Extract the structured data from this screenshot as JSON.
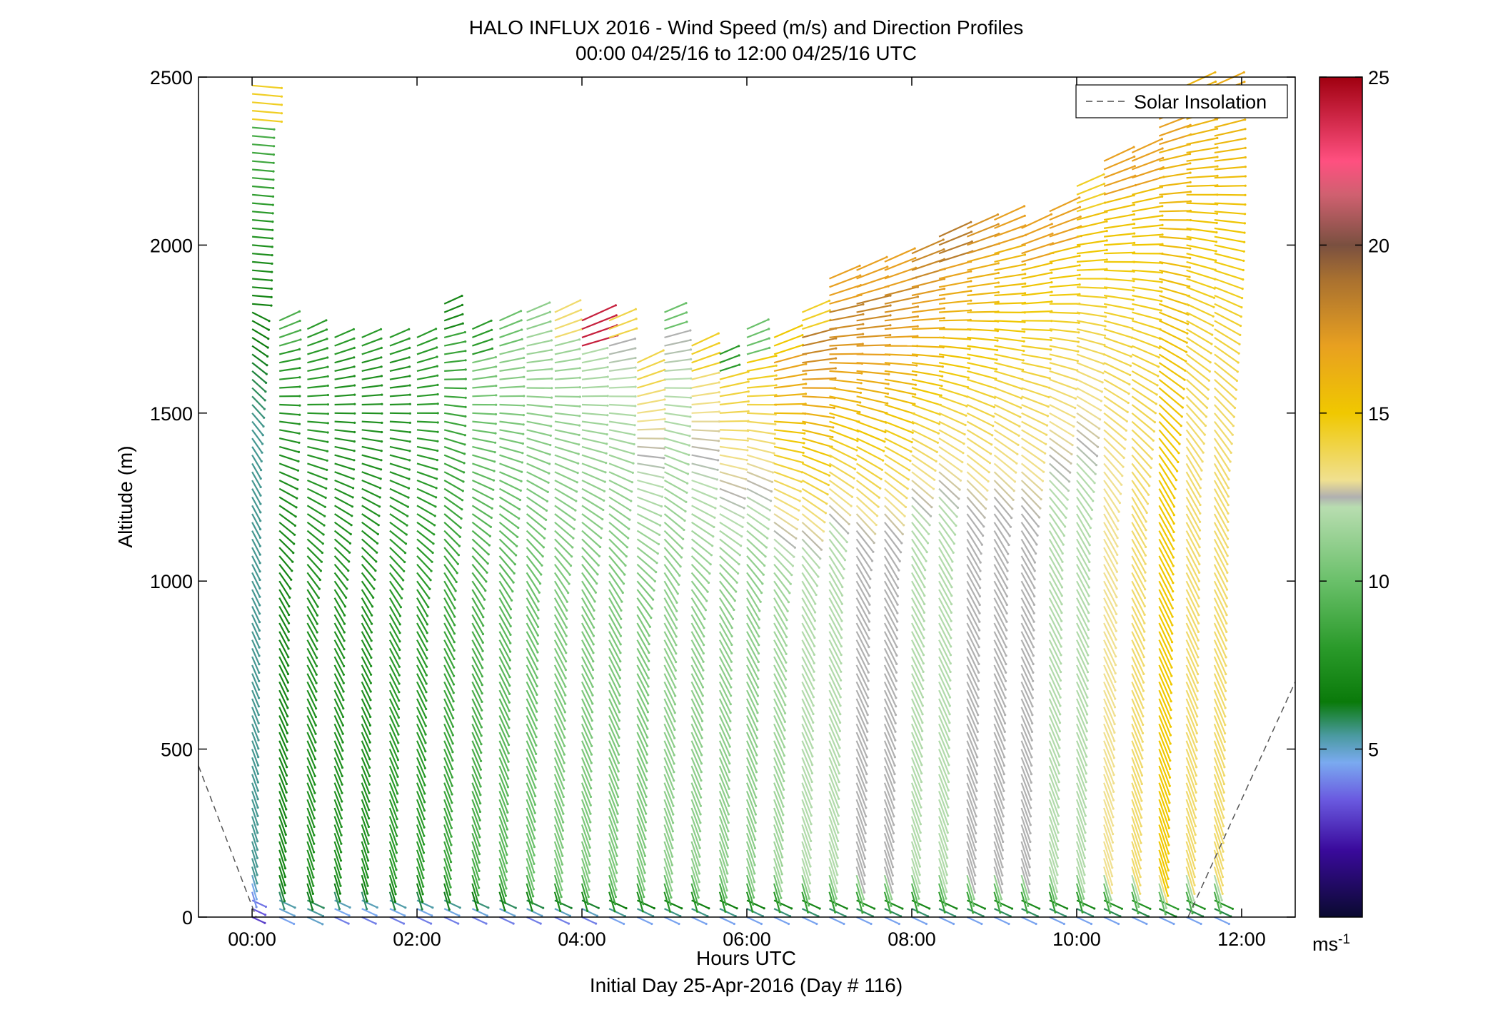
{
  "chart_data": {
    "type": "wind-barb-profile",
    "title": "HALO INFLUX 2016 - Wind Speed (m/s) and Direction Profiles",
    "subtitle": "00:00 04/25/16 to 12:00 04/25/16  UTC",
    "xlabel": "Hours UTC",
    "xlabel2": "Initial Day 25-Apr-2016 (Day # 116)",
    "ylabel": "Altitude (m)",
    "x_ticks": [
      "00:00",
      "02:00",
      "04:00",
      "06:00",
      "08:00",
      "10:00",
      "12:00"
    ],
    "x_tick_hours": [
      0,
      2,
      4,
      6,
      8,
      10,
      12
    ],
    "xlim_hours": [
      -0.65,
      12.65
    ],
    "y_ticks": [
      "0",
      "500",
      "1000",
      "1500",
      "2000",
      "2500"
    ],
    "y_tick_values": [
      0,
      500,
      1000,
      1500,
      2000,
      2500
    ],
    "ylim": [
      0,
      2500
    ],
    "legend": {
      "label": "Solar Insolation",
      "placement": "top-right"
    },
    "colorbar": {
      "ticks": [
        "5",
        "10",
        "15",
        "20",
        "25"
      ],
      "tick_values": [
        5,
        10,
        15,
        20,
        25
      ],
      "range": [
        0,
        25
      ],
      "unit": "ms",
      "unit_exp": "-1",
      "stops": [
        {
          "v": 0,
          "c": "#0a0a30"
        },
        {
          "v": 2,
          "c": "#3a0a9c"
        },
        {
          "v": 3.5,
          "c": "#6a5ae0"
        },
        {
          "v": 4.6,
          "c": "#7aaaf0"
        },
        {
          "v": 5.4,
          "c": "#4a9aa0"
        },
        {
          "v": 6.4,
          "c": "#0a7a0a"
        },
        {
          "v": 8,
          "c": "#2a9a2a"
        },
        {
          "v": 10,
          "c": "#6ac06a"
        },
        {
          "v": 12.2,
          "c": "#b8ddb0"
        },
        {
          "v": 12.5,
          "c": "#b0b0b0"
        },
        {
          "v": 13,
          "c": "#f0e090"
        },
        {
          "v": 15,
          "c": "#f0c800"
        },
        {
          "v": 17,
          "c": "#e8a020"
        },
        {
          "v": 19,
          "c": "#a87030"
        },
        {
          "v": 20,
          "c": "#7a5040"
        },
        {
          "v": 21.5,
          "c": "#d06070"
        },
        {
          "v": 22.5,
          "c": "#ff5080"
        },
        {
          "v": 25,
          "c": "#a00010"
        }
      ]
    },
    "solar_insolation": [
      {
        "x": -0.65,
        "y": 450
      },
      {
        "x": 0.05,
        "y": 0
      },
      {
        "x": 11.35,
        "y": 0
      },
      {
        "x": 12.65,
        "y": 700
      }
    ],
    "profiles": [
      {
        "t": 0.0,
        "top": 2480,
        "dir": 265,
        "speed_low": 3.0,
        "speed_mid": 5.5,
        "speed_high": 9.0,
        "speed_top": 14.5
      },
      {
        "t": 0.33,
        "top": 1780,
        "dir": 320,
        "speed_low": 4.5,
        "speed_mid": 7.0,
        "speed_high": 8.0,
        "speed_top": 9.0
      },
      {
        "t": 0.67,
        "top": 1750,
        "dir": 330,
        "speed_low": 5.0,
        "speed_mid": 7.5,
        "speed_high": 8.0,
        "speed_top": 8.0
      },
      {
        "t": 1.0,
        "top": 1740,
        "dir": 335,
        "speed_low": 4.0,
        "speed_mid": 7.5,
        "speed_high": 7.5,
        "speed_top": 8.0
      },
      {
        "t": 1.33,
        "top": 1740,
        "dir": 335,
        "speed_low": 4.0,
        "speed_mid": 7.5,
        "speed_high": 7.5,
        "speed_top": 8.0
      },
      {
        "t": 1.67,
        "top": 1740,
        "dir": 340,
        "speed_low": 4.0,
        "speed_mid": 8.0,
        "speed_high": 7.5,
        "speed_top": 8.0
      },
      {
        "t": 2.0,
        "top": 1730,
        "dir": 340,
        "speed_low": 4.0,
        "speed_mid": 8.0,
        "speed_high": 8.0,
        "speed_top": 8.0
      },
      {
        "t": 2.33,
        "top": 1830,
        "dir": 340,
        "speed_low": 4.0,
        "speed_mid": 8.5,
        "speed_high": 8.5,
        "speed_top": 7.0
      },
      {
        "t": 2.67,
        "top": 1760,
        "dir": 340,
        "speed_low": 4.0,
        "speed_mid": 9.0,
        "speed_high": 10.5,
        "speed_top": 8.0
      },
      {
        "t": 3.0,
        "top": 1780,
        "dir": 345,
        "speed_low": 4.0,
        "speed_mid": 9.5,
        "speed_high": 11.0,
        "speed_top": 10.0
      },
      {
        "t": 3.33,
        "top": 1820,
        "dir": 345,
        "speed_low": 4.0,
        "speed_mid": 10.0,
        "speed_high": 11.5,
        "speed_top": 11.0
      },
      {
        "t": 3.67,
        "top": 1800,
        "dir": 350,
        "speed_low": 4.0,
        "speed_mid": 10.5,
        "speed_high": 11.5,
        "speed_top": 13.5
      },
      {
        "t": 4.0,
        "top": 1780,
        "dir": 350,
        "speed_low": 4.0,
        "speed_mid": 10.5,
        "speed_high": 12.0,
        "speed_top": 24.0
      },
      {
        "t": 4.33,
        "top": 1790,
        "dir": 345,
        "speed_low": 4.5,
        "speed_mid": 10.5,
        "speed_high": 12.5,
        "speed_top": 14.0
      },
      {
        "t": 4.67,
        "top": 1650,
        "dir": 350,
        "speed_low": 4.5,
        "speed_mid": 10.5,
        "speed_high": 13.5,
        "speed_top": 14.0
      },
      {
        "t": 5.0,
        "top": 1820,
        "dir": 350,
        "speed_low": 4.5,
        "speed_mid": 11.0,
        "speed_high": 12.5,
        "speed_top": 10.0
      },
      {
        "t": 5.33,
        "top": 1700,
        "dir": 350,
        "speed_low": 4.5,
        "speed_mid": 11.0,
        "speed_high": 13.5,
        "speed_top": 14.5
      },
      {
        "t": 5.67,
        "top": 1690,
        "dir": 355,
        "speed_low": 4.5,
        "speed_mid": 11.0,
        "speed_high": 14.5,
        "speed_top": 8.0
      },
      {
        "t": 6.0,
        "top": 1760,
        "dir": 355,
        "speed_low": 4.5,
        "speed_mid": 11.0,
        "speed_high": 15.0,
        "speed_top": 10.0
      },
      {
        "t": 6.33,
        "top": 1740,
        "dir": 355,
        "speed_low": 4.5,
        "speed_mid": 11.5,
        "speed_high": 17.0,
        "speed_top": 15.0
      },
      {
        "t": 6.67,
        "top": 1820,
        "dir": 355,
        "speed_low": 4.5,
        "speed_mid": 12.0,
        "speed_high": 18.5,
        "speed_top": 14.5
      },
      {
        "t": 7.0,
        "top": 1920,
        "dir": 355,
        "speed_low": 4.5,
        "speed_mid": 12.0,
        "speed_high": 18.5,
        "speed_top": 17.0
      },
      {
        "t": 7.33,
        "top": 1940,
        "dir": 355,
        "speed_low": 4.5,
        "speed_mid": 12.5,
        "speed_high": 18.5,
        "speed_top": 17.0
      },
      {
        "t": 7.67,
        "top": 1960,
        "dir": 355,
        "speed_low": 4.5,
        "speed_mid": 12.5,
        "speed_high": 18.0,
        "speed_top": 17.0
      },
      {
        "t": 8.0,
        "top": 1990,
        "dir": 0,
        "speed_low": 4.5,
        "speed_mid": 12.0,
        "speed_high": 17.5,
        "speed_top": 18.0
      },
      {
        "t": 8.33,
        "top": 2030,
        "dir": 0,
        "speed_low": 4.5,
        "speed_mid": 12.0,
        "speed_high": 17.0,
        "speed_top": 18.5
      },
      {
        "t": 8.67,
        "top": 2060,
        "dir": 0,
        "speed_low": 4.5,
        "speed_mid": 12.5,
        "speed_high": 16.5,
        "speed_top": 17.5
      },
      {
        "t": 9.0,
        "top": 2080,
        "dir": 0,
        "speed_low": 4.5,
        "speed_mid": 12.5,
        "speed_high": 16.0,
        "speed_top": 17.0
      },
      {
        "t": 9.33,
        "top": 2050,
        "dir": 0,
        "speed_low": 4.5,
        "speed_mid": 12.5,
        "speed_high": 15.5,
        "speed_top": 17.0
      },
      {
        "t": 9.67,
        "top": 2100,
        "dir": 0,
        "speed_low": 4.5,
        "speed_mid": 12.0,
        "speed_high": 15.5,
        "speed_top": 17.0
      },
      {
        "t": 10.0,
        "top": 2190,
        "dir": 0,
        "speed_low": 4.5,
        "speed_mid": 12.0,
        "speed_high": 15.5,
        "speed_top": 14.5
      },
      {
        "t": 10.33,
        "top": 2250,
        "dir": 0,
        "speed_low": 4.5,
        "speed_mid": 13.0,
        "speed_high": 15.5,
        "speed_top": 17.0
      },
      {
        "t": 10.67,
        "top": 2280,
        "dir": 0,
        "speed_low": 4.5,
        "speed_mid": 13.5,
        "speed_high": 15.5,
        "speed_top": 17.0
      },
      {
        "t": 11.0,
        "top": 2400,
        "dir": 0,
        "speed_low": 4.5,
        "speed_mid": 15.0,
        "speed_high": 16.0,
        "speed_top": 17.0
      },
      {
        "t": 11.33,
        "top": 2480,
        "dir": 0,
        "speed_low": 4.5,
        "speed_mid": 13.5,
        "speed_high": 16.0,
        "speed_top": 16.0
      },
      {
        "t": 11.67,
        "top": 2490,
        "dir": 0,
        "speed_low": 4.5,
        "speed_mid": 13.5,
        "speed_high": 16.0,
        "speed_top": 16.5
      }
    ]
  }
}
